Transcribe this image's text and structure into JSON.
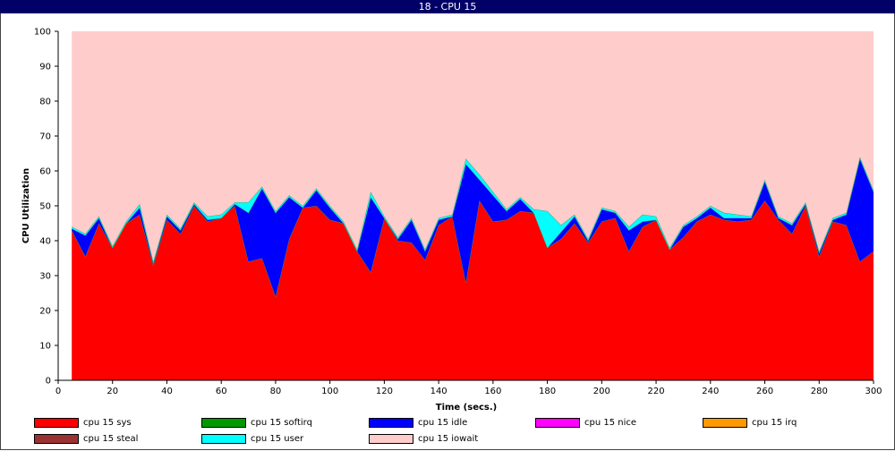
{
  "window": {
    "title": "18 - CPU 15"
  },
  "chart_data": {
    "type": "area",
    "stacked": true,
    "xlabel": "Time (secs.)",
    "ylabel": "CPU Utilization",
    "xlim": [
      0,
      300
    ],
    "ylim": [
      0,
      100
    ],
    "xticks": [
      0,
      20,
      40,
      60,
      80,
      100,
      120,
      140,
      160,
      180,
      200,
      220,
      240,
      260,
      280,
      300
    ],
    "yticks": [
      0,
      10,
      20,
      30,
      40,
      50,
      60,
      70,
      80,
      90,
      100
    ],
    "grid": false,
    "legend_position": "bottom",
    "x": [
      5,
      10,
      15,
      20,
      25,
      30,
      35,
      40,
      45,
      50,
      55,
      60,
      65,
      70,
      75,
      80,
      85,
      90,
      95,
      100,
      105,
      110,
      115,
      120,
      125,
      130,
      135,
      140,
      145,
      150,
      155,
      160,
      165,
      170,
      175,
      180,
      185,
      190,
      195,
      200,
      205,
      210,
      215,
      220,
      225,
      230,
      235,
      240,
      245,
      250,
      255,
      260,
      265,
      270,
      275,
      280,
      285,
      290,
      295,
      300
    ],
    "series": [
      {
        "name": "cpu 15 sys",
        "color": "#ff0000",
        "values": [
          43,
          35.5,
          45,
          38,
          45,
          47.5,
          33,
          46,
          42,
          50,
          45.5,
          46.5,
          50,
          34,
          35,
          24,
          40.5,
          49.5,
          50,
          46,
          45,
          37,
          31,
          46.5,
          40,
          39.5,
          34.5,
          44.5,
          47,
          28,
          51.5,
          45.5,
          46,
          48.5,
          48,
          38,
          40.5,
          45,
          39.5,
          45.5,
          46.5,
          37,
          44,
          46,
          37.5,
          41,
          45.5,
          47.5,
          46,
          45.5,
          46,
          51.5,
          46,
          42,
          50,
          35.5,
          45.5,
          44.5,
          34,
          37
        ]
      },
      {
        "name": "cpu 15 softirq",
        "color": "#009900",
        "values": [
          0,
          0,
          0,
          0,
          0,
          0,
          0,
          0,
          0,
          0,
          0,
          0,
          0,
          0,
          0,
          0,
          0,
          0,
          0,
          0,
          0,
          0,
          0,
          0,
          0,
          0,
          0,
          0,
          0,
          0,
          0,
          0,
          0,
          0,
          0,
          0,
          0,
          0,
          0,
          0,
          0,
          0,
          0,
          0,
          0,
          0,
          0,
          0,
          0,
          0,
          0,
          0,
          0,
          0,
          0,
          0,
          0,
          0,
          0,
          0
        ]
      },
      {
        "name": "cpu 15 idle",
        "color": "#0000ff",
        "values": [
          0.5,
          6,
          1.5,
          0,
          0,
          2,
          0.5,
          1,
          1,
          0.5,
          0.5,
          0,
          0.5,
          14,
          20,
          24,
          12,
          0,
          4.5,
          3.5,
          0,
          0,
          21.5,
          0,
          0.5,
          6.5,
          2.5,
          1.5,
          0,
          34,
          6,
          7.5,
          2.5,
          3.5,
          0,
          0,
          2,
          2,
          0.5,
          3.5,
          1.5,
          6,
          1.5,
          0,
          0,
          3,
          1,
          2,
          0.5,
          1,
          0.5,
          5.5,
          0.5,
          2.5,
          0.5,
          1,
          0.5,
          3,
          29.5,
          17
        ]
      },
      {
        "name": "cpu 15 nice",
        "color": "#ff00ff",
        "values": [
          0,
          0,
          0,
          0,
          0,
          0,
          0,
          0,
          0,
          0,
          0,
          0,
          0,
          0,
          0,
          0,
          0,
          0,
          0,
          0,
          0,
          0,
          0,
          0,
          0,
          0,
          0,
          0,
          0,
          0,
          0,
          0,
          0,
          0,
          0,
          0,
          0,
          0,
          0,
          0,
          0,
          0,
          0,
          0,
          0,
          0,
          0,
          0,
          0,
          0,
          0,
          0,
          0,
          0,
          0,
          0,
          0,
          0,
          0,
          0
        ]
      },
      {
        "name": "cpu 15 irq",
        "color": "#ff9900",
        "values": [
          0,
          0,
          0,
          0,
          0,
          0,
          0,
          0,
          0,
          0,
          0,
          0,
          0,
          0,
          0,
          0,
          0,
          0,
          0,
          0,
          0,
          0,
          0,
          0,
          0,
          0,
          0,
          0,
          0,
          0,
          0,
          0,
          0,
          0,
          0,
          0,
          0,
          0,
          0,
          0,
          0,
          0,
          0,
          0,
          0,
          0,
          0,
          0,
          0,
          0,
          0,
          0,
          0,
          0,
          0,
          0,
          0,
          0,
          0,
          0
        ]
      },
      {
        "name": "cpu 15 steal",
        "color": "#993333",
        "values": [
          0,
          0,
          0,
          0,
          0,
          0,
          0,
          0,
          0,
          0,
          0,
          0,
          0,
          0,
          0,
          0,
          0,
          0,
          0,
          0,
          0,
          0,
          0,
          0,
          0,
          0,
          0,
          0,
          0,
          0,
          0,
          0,
          0,
          0,
          0,
          0,
          0,
          0,
          0,
          0,
          0,
          0,
          0,
          0,
          0,
          0,
          0,
          0,
          0,
          0,
          0,
          0,
          0,
          0,
          0,
          0,
          0,
          0,
          0,
          0
        ]
      },
      {
        "name": "cpu 15 user",
        "color": "#00ffff",
        "values": [
          0.5,
          0.5,
          0.5,
          0.5,
          0.5,
          1,
          0.5,
          0.5,
          0.5,
          0.5,
          1,
          1,
          0.5,
          3,
          0.5,
          0.5,
          0.5,
          0.5,
          0.5,
          0.5,
          0.5,
          0.5,
          1.5,
          0.5,
          0.5,
          0.5,
          0.5,
          0.5,
          0.5,
          1.5,
          1.5,
          1,
          0.5,
          0.5,
          1,
          10.5,
          2,
          0.5,
          0.5,
          0.5,
          0.5,
          1,
          2,
          1,
          0.5,
          0.5,
          0.5,
          0.5,
          1.5,
          1,
          0.5,
          0.5,
          0.5,
          0.5,
          0.5,
          0.5,
          0.5,
          0.5,
          0.5,
          0.5
        ]
      },
      {
        "name": "cpu 15 iowait",
        "color": "#ffcccc",
        "values": [
          56,
          58,
          53,
          61.5,
          54.5,
          49.5,
          66,
          52.5,
          56.5,
          49,
          53,
          52.5,
          49,
          49,
          44.5,
          51.5,
          47,
          50,
          45,
          50,
          54.5,
          62.5,
          46,
          53,
          59,
          53.5,
          62.5,
          53.5,
          52.5,
          36.5,
          41,
          46,
          51,
          47.5,
          51,
          51.5,
          55.5,
          52.5,
          59.5,
          50.5,
          51.5,
          56,
          52.5,
          53,
          62,
          55.5,
          53,
          50,
          52,
          52.5,
          53,
          42.5,
          53,
          55,
          49,
          63,
          53.5,
          52,
          36,
          45.5
        ]
      }
    ]
  },
  "legend": [
    {
      "label": "cpu 15 sys",
      "color": "#ff0000"
    },
    {
      "label": "cpu 15 softirq",
      "color": "#009900"
    },
    {
      "label": "cpu 15 idle",
      "color": "#0000ff"
    },
    {
      "label": "cpu 15 nice",
      "color": "#ff00ff"
    },
    {
      "label": "cpu 15 irq",
      "color": "#ff9900"
    },
    {
      "label": "cpu 15 steal",
      "color": "#993333"
    },
    {
      "label": "cpu 15 user",
      "color": "#00ffff"
    },
    {
      "label": "cpu 15 iowait",
      "color": "#ffcccc"
    }
  ]
}
